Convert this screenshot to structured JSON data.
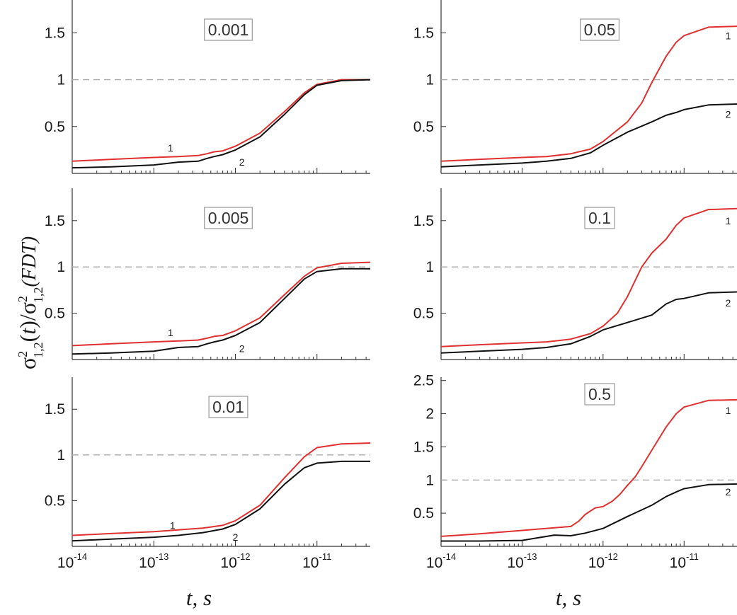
{
  "figure": {
    "ylabel": {
      "sigma": "σ",
      "sup": "2",
      "sub": "1,2",
      "t_open": "(",
      "t_var": "t",
      "t_close": ")/",
      "sigma2": "σ",
      "sup2": "2",
      "sub2": "1,2",
      "fdt": "(FDT)"
    },
    "xlabel_left": "t, s",
    "xlabel_right": "t, s"
  },
  "chart_data": [
    {
      "type": "line",
      "annotation": "0.001",
      "xscale": "log",
      "xlim": [
        1e-14,
        4.5e-11
      ],
      "ylim": [
        0,
        1.85
      ],
      "yticks": [
        "0.5",
        "1",
        "1.5"
      ],
      "reference_line": 1,
      "series": [
        {
          "name": "1",
          "color": "#e03030",
          "x": [
            1e-14,
            3e-14,
            1e-13,
            2e-13,
            3.5e-13,
            4.5e-13,
            5.5e-13,
            7e-13,
            1e-12,
            2e-12,
            4e-12,
            7e-12,
            1e-11,
            2e-11,
            4.5e-11
          ],
          "y": [
            0.13,
            0.15,
            0.17,
            0.18,
            0.19,
            0.21,
            0.23,
            0.24,
            0.29,
            0.43,
            0.66,
            0.86,
            0.95,
            1.0,
            1.0
          ]
        },
        {
          "name": "2",
          "color": "#111111",
          "x": [
            1e-14,
            3e-14,
            1e-13,
            2e-13,
            3.5e-13,
            4.5e-13,
            5.5e-13,
            7e-13,
            1e-12,
            2e-12,
            4e-12,
            7e-12,
            1e-11,
            2e-11,
            4.5e-11
          ],
          "y": [
            0.06,
            0.07,
            0.09,
            0.12,
            0.13,
            0.16,
            0.18,
            0.2,
            0.25,
            0.39,
            0.63,
            0.84,
            0.94,
            0.99,
            1.0
          ]
        }
      ],
      "curve_labels": [
        {
          "text": "1",
          "x": 1.6e-13,
          "y": 0.27
        },
        {
          "text": "2",
          "x": 1.2e-12,
          "y": 0.12
        }
      ]
    },
    {
      "type": "line",
      "annotation": "0.005",
      "xscale": "log",
      "xlim": [
        1e-14,
        4.5e-11
      ],
      "ylim": [
        0,
        1.85
      ],
      "yticks": [
        "0.5",
        "1",
        "1.5"
      ],
      "reference_line": 1,
      "series": [
        {
          "name": "1",
          "color": "#e03030",
          "x": [
            1e-14,
            3e-14,
            1e-13,
            2e-13,
            3.5e-13,
            4.5e-13,
            5.5e-13,
            7e-13,
            1e-12,
            2e-12,
            4e-12,
            7e-12,
            1e-11,
            2e-11,
            4.5e-11
          ],
          "y": [
            0.15,
            0.17,
            0.19,
            0.2,
            0.21,
            0.23,
            0.25,
            0.26,
            0.31,
            0.45,
            0.7,
            0.9,
            0.99,
            1.04,
            1.05
          ]
        },
        {
          "name": "2",
          "color": "#111111",
          "x": [
            1e-14,
            3e-14,
            1e-13,
            2e-13,
            3.5e-13,
            4.5e-13,
            5.5e-13,
            7e-13,
            1e-12,
            2e-12,
            4e-12,
            7e-12,
            1e-11,
            2e-11,
            4.5e-11
          ],
          "y": [
            0.06,
            0.07,
            0.09,
            0.13,
            0.14,
            0.17,
            0.19,
            0.21,
            0.26,
            0.4,
            0.66,
            0.87,
            0.95,
            0.98,
            0.98
          ]
        }
      ],
      "curve_labels": [
        {
          "text": "1",
          "x": 1.6e-13,
          "y": 0.29
        },
        {
          "text": "2",
          "x": 1.2e-12,
          "y": 0.12
        }
      ]
    },
    {
      "type": "line",
      "annotation": "0.01",
      "xscale": "log",
      "xlim": [
        1e-14,
        4.5e-11
      ],
      "ylim": [
        0,
        1.85
      ],
      "yticks": [
        "0.5",
        "1",
        "1.5"
      ],
      "reference_line": 1,
      "series": [
        {
          "name": "1",
          "color": "#e03030",
          "x": [
            1e-14,
            3e-14,
            1e-13,
            2e-13,
            4e-13,
            7e-13,
            1e-12,
            2e-12,
            4e-12,
            7e-12,
            1e-11,
            2e-11,
            4.5e-11
          ],
          "y": [
            0.12,
            0.14,
            0.16,
            0.18,
            0.2,
            0.23,
            0.28,
            0.45,
            0.75,
            0.98,
            1.08,
            1.12,
            1.13
          ]
        },
        {
          "name": "2",
          "color": "#111111",
          "x": [
            1e-14,
            3e-14,
            1e-13,
            2e-13,
            4e-13,
            7e-13,
            1e-12,
            2e-12,
            4e-12,
            7e-12,
            1e-11,
            2e-11,
            4.5e-11
          ],
          "y": [
            0.06,
            0.08,
            0.1,
            0.12,
            0.15,
            0.19,
            0.24,
            0.41,
            0.68,
            0.86,
            0.91,
            0.93,
            0.93
          ]
        }
      ],
      "curve_labels": [
        {
          "text": "1",
          "x": 1.7e-13,
          "y": 0.23
        },
        {
          "text": "2",
          "x": 1e-12,
          "y": 0.1
        }
      ]
    },
    {
      "type": "line",
      "annotation": "0.05",
      "xscale": "log",
      "xlim": [
        1e-14,
        4.5e-11
      ],
      "ylim": [
        0,
        1.85
      ],
      "yticks": [
        "0.5",
        "1",
        "1.5"
      ],
      "reference_line": 1,
      "series": [
        {
          "name": "1",
          "color": "#e03030",
          "x": [
            1e-14,
            3e-14,
            1e-13,
            2e-13,
            4e-13,
            7e-13,
            1e-12,
            2e-12,
            3e-12,
            4e-12,
            6e-12,
            8e-12,
            1e-11,
            2e-11,
            4.5e-11
          ],
          "y": [
            0.13,
            0.15,
            0.17,
            0.18,
            0.21,
            0.26,
            0.34,
            0.55,
            0.75,
            0.97,
            1.25,
            1.4,
            1.47,
            1.56,
            1.57
          ]
        },
        {
          "name": "2",
          "color": "#111111",
          "x": [
            1e-14,
            3e-14,
            1e-13,
            2e-13,
            4e-13,
            7e-13,
            1e-12,
            2e-12,
            4e-12,
            6e-12,
            8e-12,
            1e-11,
            2e-11,
            4.5e-11
          ],
          "y": [
            0.07,
            0.09,
            0.11,
            0.13,
            0.16,
            0.22,
            0.3,
            0.44,
            0.55,
            0.62,
            0.65,
            0.68,
            0.73,
            0.74
          ]
        }
      ],
      "curve_labels": [
        {
          "text": "1",
          "x": 3.5e-11,
          "y": 1.47
        },
        {
          "text": "2",
          "x": 3.5e-11,
          "y": 0.63
        }
      ]
    },
    {
      "type": "line",
      "annotation": "0.1",
      "xscale": "log",
      "xlim": [
        1e-14,
        4.5e-11
      ],
      "ylim": [
        0,
        1.85
      ],
      "yticks": [
        "0.5",
        "1",
        "1.5"
      ],
      "reference_line": 1,
      "series": [
        {
          "name": "1",
          "color": "#e03030",
          "x": [
            1e-14,
            3e-14,
            1e-13,
            2e-13,
            4e-13,
            7e-13,
            1e-12,
            1.5e-12,
            2e-12,
            3e-12,
            4e-12,
            6e-12,
            8e-12,
            1e-11,
            2e-11,
            4.5e-11
          ],
          "y": [
            0.14,
            0.16,
            0.18,
            0.19,
            0.22,
            0.28,
            0.36,
            0.5,
            0.68,
            1.0,
            1.15,
            1.3,
            1.45,
            1.53,
            1.62,
            1.63
          ]
        },
        {
          "name": "2",
          "color": "#111111",
          "x": [
            1e-14,
            3e-14,
            1e-13,
            2e-13,
            4e-13,
            7e-13,
            1e-12,
            2e-12,
            4e-12,
            6e-12,
            8e-12,
            1e-11,
            2e-11,
            4.5e-11
          ],
          "y": [
            0.07,
            0.09,
            0.11,
            0.13,
            0.17,
            0.25,
            0.32,
            0.4,
            0.48,
            0.6,
            0.65,
            0.66,
            0.72,
            0.73
          ]
        }
      ],
      "curve_labels": [
        {
          "text": "1",
          "x": 3.5e-11,
          "y": 1.5
        },
        {
          "text": "2",
          "x": 3.5e-11,
          "y": 0.61
        }
      ]
    },
    {
      "type": "line",
      "annotation": "0.5",
      "xscale": "log",
      "xlim": [
        1e-14,
        4.5e-11
      ],
      "ylim": [
        0,
        2.55
      ],
      "yticks": [
        "0.5",
        "1",
        "1.5",
        "2",
        "2.5"
      ],
      "reference_line": 1,
      "series": [
        {
          "name": "1",
          "color": "#e03030",
          "x": [
            1e-14,
            3e-14,
            1e-13,
            2.5e-13,
            4e-13,
            5e-13,
            6e-13,
            8e-13,
            1e-12,
            1.3e-12,
            1.6e-12,
            2e-12,
            2.5e-12,
            3e-12,
            4e-12,
            6e-12,
            8e-12,
            1e-11,
            2e-11,
            4.5e-11
          ],
          "y": [
            0.15,
            0.19,
            0.24,
            0.28,
            0.3,
            0.38,
            0.48,
            0.58,
            0.6,
            0.68,
            0.78,
            0.92,
            1.05,
            1.2,
            1.45,
            1.8,
            2.0,
            2.1,
            2.2,
            2.21
          ]
        },
        {
          "name": "2",
          "color": "#111111",
          "x": [
            1e-14,
            3e-14,
            1e-13,
            2.5e-13,
            4e-13,
            6e-13,
            1e-12,
            2e-12,
            4e-12,
            6e-12,
            8e-12,
            1e-11,
            2e-11,
            4.5e-11
          ],
          "y": [
            0.08,
            0.08,
            0.09,
            0.17,
            0.16,
            0.2,
            0.27,
            0.45,
            0.62,
            0.75,
            0.82,
            0.87,
            0.93,
            0.94
          ]
        }
      ],
      "curve_labels": [
        {
          "text": "1",
          "x": 3.5e-11,
          "y": 2.05
        },
        {
          "text": "2",
          "x": 3.5e-11,
          "y": 0.82
        }
      ]
    }
  ]
}
